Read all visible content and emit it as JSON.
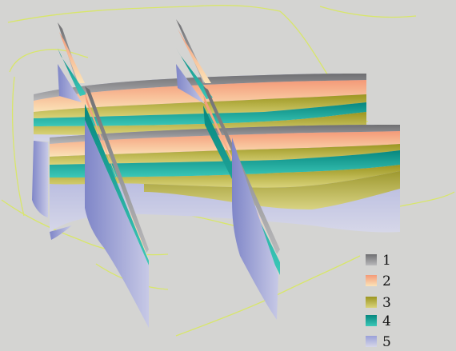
{
  "background_color": "#d4d4d2",
  "outline_color": "#d8e66a",
  "layers": [
    {
      "label": "1",
      "color": "#8e8e90"
    },
    {
      "label": "2",
      "color": "#f3a57a"
    },
    {
      "label": "3",
      "color": "#b8b238"
    },
    {
      "label": "4",
      "color": "#12a49a"
    },
    {
      "label": "5",
      "color": "#8c92cc"
    }
  ]
}
